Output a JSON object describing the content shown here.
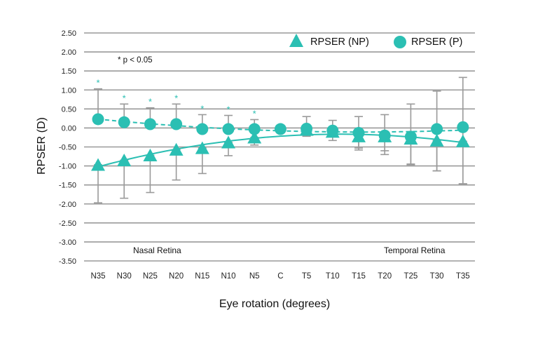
{
  "chart_data": {
    "type": "line",
    "x_label": "Eye rotation (degrees)",
    "y_label": "RPSER (D)",
    "categories": [
      "N35",
      "N30",
      "N25",
      "N20",
      "N15",
      "N10",
      "N5",
      "C",
      "T5",
      "T10",
      "T15",
      "T20",
      "T25",
      "T30",
      "T35"
    ],
    "ylim": [
      -3.5,
      2.5
    ],
    "y_ticks": [
      "2.50",
      "2.00",
      "1.50",
      "1.00",
      "0.50",
      "0.00",
      "-0.50",
      "-1.00",
      "-1.50",
      "-2.00",
      "-2.50",
      "-3.00",
      "-3.50"
    ],
    "grid": true,
    "legend_position": "top-right",
    "color": "#2bbfb3",
    "series": [
      {
        "name": "RPSER (NP)",
        "marker": "triangle",
        "line_style": "solid",
        "values": [
          -0.97,
          -0.85,
          -0.72,
          -0.57,
          -0.53,
          -0.38,
          -0.25,
          null,
          -0.05,
          -0.1,
          -0.22,
          -0.22,
          -0.28,
          -0.33,
          -0.35
        ],
        "error_upper": [
          -0.35,
          -0.3,
          -0.25,
          -0.15,
          -0.1,
          -0.08,
          0.0,
          null,
          0.08,
          0.1,
          0.1,
          0.08,
          0.05,
          0.0,
          -0.05
        ],
        "error_lower": [
          -1.97,
          -1.85,
          -1.7,
          -1.37,
          -1.2,
          -0.73,
          -0.45,
          null,
          -0.22,
          -0.33,
          -0.58,
          -0.7,
          -0.95,
          -1.13,
          -1.47
        ]
      },
      {
        "name": "RPSER (P)",
        "marker": "circle",
        "line_style": "dashed",
        "values": [
          0.23,
          0.15,
          0.1,
          0.1,
          -0.03,
          -0.03,
          -0.03,
          -0.03,
          -0.02,
          -0.07,
          -0.13,
          -0.2,
          -0.23,
          -0.03,
          0.02
        ],
        "error_upper": [
          1.03,
          0.63,
          0.53,
          0.63,
          0.35,
          0.33,
          0.22,
          null,
          0.3,
          0.2,
          0.3,
          0.35,
          0.63,
          0.97,
          1.33
        ],
        "error_lower": [
          null,
          null,
          null,
          null,
          null,
          null,
          null,
          null,
          null,
          null,
          -0.53,
          -0.6,
          -0.97,
          -1.13,
          -1.47
        ]
      }
    ],
    "significance_marker": "*",
    "significant_categories": [
      "N35",
      "N30",
      "N25",
      "N20",
      "N15",
      "N10",
      "N5"
    ],
    "note": "* p < 0.05",
    "region_labels": [
      "Nasal Retina",
      "Temporal Retina"
    ]
  }
}
